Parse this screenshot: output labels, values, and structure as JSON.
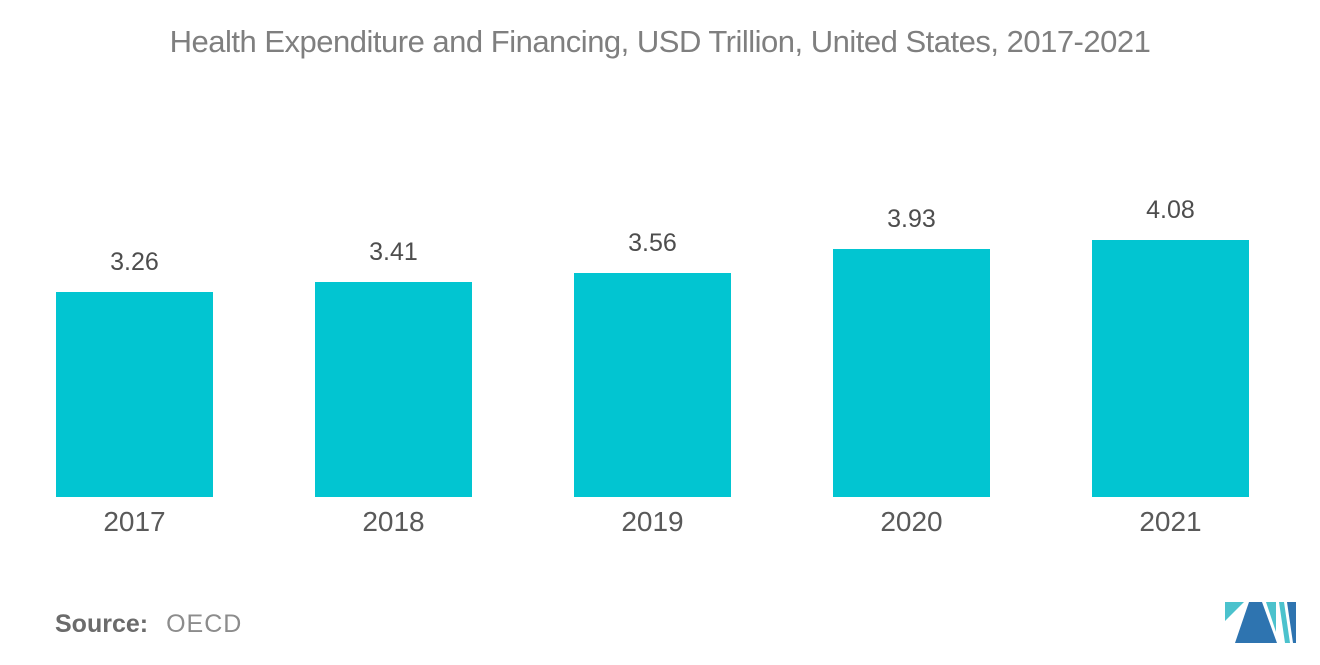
{
  "chart_data": {
    "type": "bar",
    "title": "Health Expenditure and Financing, USD Trillion, United States, 2017-2021",
    "categories": [
      "2017",
      "2018",
      "2019",
      "2020",
      "2021"
    ],
    "values": [
      3.26,
      3.41,
      3.56,
      3.93,
      4.08
    ],
    "value_label_format": "2-decimals",
    "xlabel": "",
    "ylabel": "",
    "ylim": [
      0,
      4.6
    ],
    "grid": false,
    "legend": "none",
    "bar_labels_position": "above-bars",
    "bar_color": "#02C5D1"
  },
  "source": {
    "label": "Source:",
    "value": "OECD"
  },
  "logo": {
    "name": "mordor-intelligence-logo",
    "blue": "#2E74B0",
    "teal": "#4BC2CD"
  }
}
